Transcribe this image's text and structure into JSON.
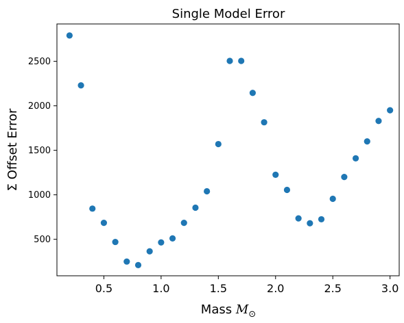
{
  "chart_data": {
    "type": "scatter",
    "title": "Single Model Error",
    "xlabel_text": "Mass ",
    "xlabel_math": "M",
    "xlabel_sub": "⊙",
    "ylabel": "Σ Offset Error",
    "xlim": [
      0.09,
      3.08
    ],
    "ylim": [
      90,
      2920
    ],
    "xticks": [
      0.5,
      1.0,
      1.5,
      2.0,
      2.5,
      3.0
    ],
    "xtick_labels": [
      "0.5",
      "1.0",
      "1.5",
      "2.0",
      "2.5",
      "3.0"
    ],
    "yticks": [
      500,
      1000,
      1500,
      2000,
      2500
    ],
    "ytick_labels": [
      "500",
      "1000",
      "1500",
      "2000",
      "2500"
    ],
    "grid": false,
    "marker_color": "#1f77b4",
    "points": [
      {
        "x": 0.2,
        "y": 2790
      },
      {
        "x": 0.3,
        "y": 2230
      },
      {
        "x": 0.4,
        "y": 845
      },
      {
        "x": 0.5,
        "y": 685
      },
      {
        "x": 0.6,
        "y": 470
      },
      {
        "x": 0.7,
        "y": 250
      },
      {
        "x": 0.8,
        "y": 210
      },
      {
        "x": 0.9,
        "y": 365
      },
      {
        "x": 1.0,
        "y": 465
      },
      {
        "x": 1.1,
        "y": 510
      },
      {
        "x": 1.2,
        "y": 685
      },
      {
        "x": 1.3,
        "y": 855
      },
      {
        "x": 1.4,
        "y": 1040
      },
      {
        "x": 1.5,
        "y": 1570
      },
      {
        "x": 1.6,
        "y": 2505
      },
      {
        "x": 1.7,
        "y": 2505
      },
      {
        "x": 1.8,
        "y": 2145
      },
      {
        "x": 1.9,
        "y": 1815
      },
      {
        "x": 2.0,
        "y": 1225
      },
      {
        "x": 2.1,
        "y": 1055
      },
      {
        "x": 2.2,
        "y": 735
      },
      {
        "x": 2.3,
        "y": 680
      },
      {
        "x": 2.4,
        "y": 725
      },
      {
        "x": 2.5,
        "y": 955
      },
      {
        "x": 2.6,
        "y": 1200
      },
      {
        "x": 2.7,
        "y": 1410
      },
      {
        "x": 2.8,
        "y": 1600
      },
      {
        "x": 2.9,
        "y": 1830
      },
      {
        "x": 3.0,
        "y": 1950
      }
    ]
  }
}
